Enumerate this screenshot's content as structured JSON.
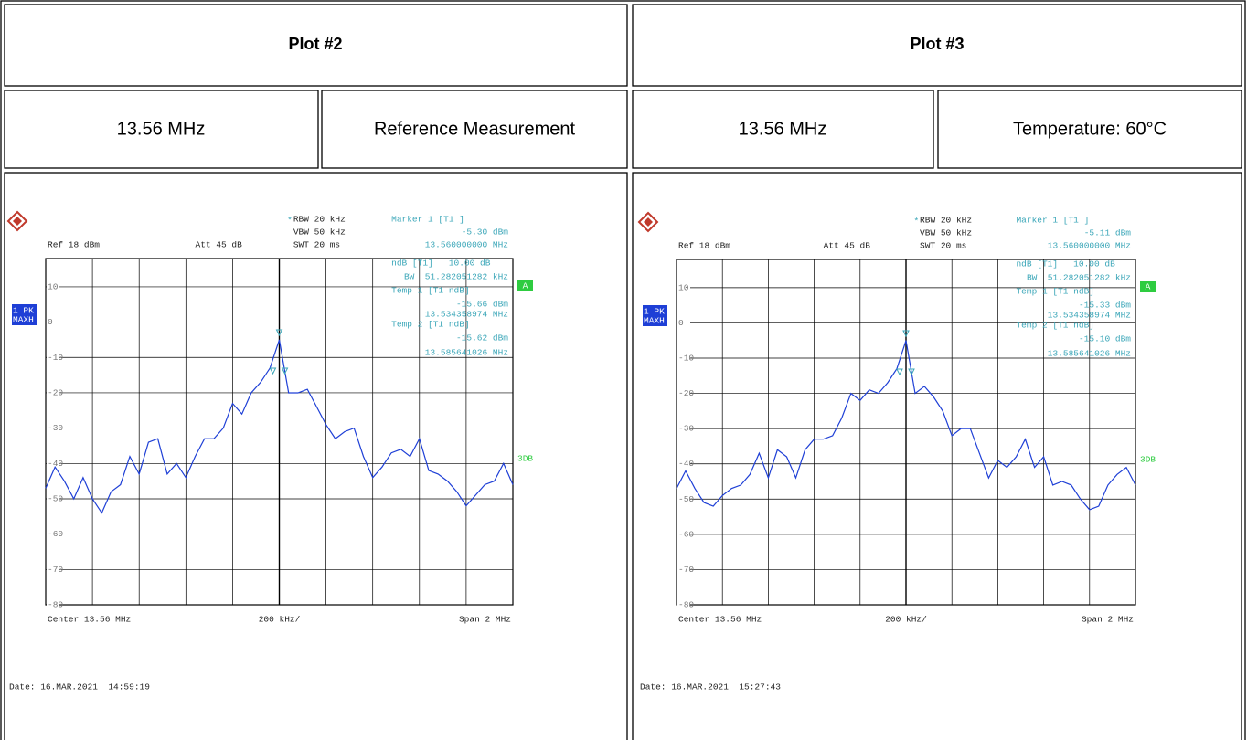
{
  "table": {
    "headers": [
      "Plot #2",
      "Plot #3"
    ],
    "subheaders": [
      [
        "13.56 MHz",
        "Reference Measurement"
      ],
      [
        "13.56 MHz",
        "Temperature: 60°C"
      ]
    ]
  },
  "plots": [
    {
      "type": "line",
      "ref": "Ref 18 dBm",
      "att": "Att 45 dB",
      "rbw_star": "*",
      "rbw": "RBW 20 kHz",
      "vbw": "VBW 50 kHz",
      "swt": "SWT 20 ms",
      "marker_lines": [
        "Marker 1 [T1 ]",
        "-5.30 dBm",
        "13.560000000 MHz",
        "ndB [T1]   10.00 dB",
        "BW  51.282051282 kHz",
        "Temp 1 [T1 ndB]",
        "-15.66 dBm",
        "13.534358974 MHz",
        "Temp 2 [T1 ndB]",
        "-15.62 dBm",
        "13.585641026 MHz"
      ],
      "trace_label": [
        "1 PK",
        "MAXH"
      ],
      "display": "A",
      "limit": "3DB",
      "center": "Center 13.56 MHz",
      "per_div": "200 kHz/",
      "span": "Span 2 MHz",
      "date": "Date: 16.MAR.2021  14:59:19",
      "color": "#1e3fd6",
      "ylim": [
        -80,
        18
      ],
      "yticks": [
        10,
        0,
        -10,
        -20,
        -30,
        -40,
        -50,
        -60,
        -70,
        -80
      ],
      "values": [
        -47,
        -41,
        -45,
        -50,
        -44,
        -50,
        -54,
        -48,
        -46,
        -38,
        -43,
        -34,
        -33,
        -43,
        -40,
        -44,
        -38,
        -33,
        -33,
        -30,
        -23,
        -26,
        -20,
        -17,
        -13,
        -5,
        -20,
        -20,
        -19,
        -24,
        -29,
        -33,
        -31,
        -30,
        -38,
        -44,
        -41,
        -37,
        -36,
        -38,
        -33,
        -42,
        -43,
        -45,
        -48,
        -52,
        -49,
        -46,
        -45,
        -40,
        -46
      ]
    },
    {
      "type": "line",
      "ref": "Ref 18 dBm",
      "att": "Att 45 dB",
      "rbw_star": "*",
      "rbw": "RBW 20 kHz",
      "vbw": "VBW 50 kHz",
      "swt": "SWT 20 ms",
      "marker_lines": [
        "Marker 1 [T1 ]",
        "-5.11 dBm",
        "13.560000000 MHz",
        "ndB [T1]   10.00 dB",
        "BW  51.282051282 kHz",
        "Temp 1 [T1 ndB]",
        "-15.33 dBm",
        "13.534358974 MHz",
        "Temp 2 [T1 ndB]",
        "-15.10 dBm",
        "13.585641026 MHz"
      ],
      "trace_label": [
        "1 PK",
        "MAXH"
      ],
      "display": "A",
      "limit": "3DB",
      "center": "Center 13.56 MHz",
      "per_div": "200 kHz/",
      "span": "Span 2 MHz",
      "date": "Date: 16.MAR.2021  15:27:43",
      "color": "#1e3fd6",
      "ylim": [
        -80,
        18
      ],
      "yticks": [
        10,
        0,
        -10,
        -20,
        -30,
        -40,
        -50,
        -60,
        -70,
        -80
      ],
      "values": [
        -47,
        -42,
        -47,
        -51,
        -52,
        -49,
        -47,
        -46,
        -43,
        -37,
        -44,
        -36,
        -38,
        -44,
        -36,
        -33,
        -33,
        -32,
        -27,
        -20,
        -22,
        -19,
        -20,
        -17,
        -13,
        -5,
        -20,
        -18,
        -21,
        -25,
        -32,
        -30,
        -30,
        -37,
        -44,
        -39,
        -41,
        -38,
        -33,
        -41,
        -38,
        -46,
        -45,
        -46,
        -50,
        -53,
        -52,
        -46,
        -43,
        -41,
        -46
      ]
    }
  ]
}
